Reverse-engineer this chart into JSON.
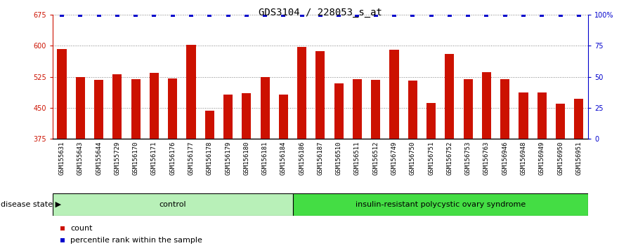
{
  "title": "GDS3104 / 228053_s_at",
  "samples": [
    "GSM155631",
    "GSM155643",
    "GSM155644",
    "GSM155729",
    "GSM156170",
    "GSM156171",
    "GSM156176",
    "GSM156177",
    "GSM156178",
    "GSM156179",
    "GSM156180",
    "GSM156181",
    "GSM156184",
    "GSM156186",
    "GSM156187",
    "GSM156510",
    "GSM156511",
    "GSM156512",
    "GSM156749",
    "GSM156750",
    "GSM156751",
    "GSM156752",
    "GSM156753",
    "GSM156763",
    "GSM156946",
    "GSM156948",
    "GSM156949",
    "GSM156950",
    "GSM156951"
  ],
  "bar_values": [
    593,
    524,
    518,
    532,
    519,
    535,
    522,
    602,
    444,
    482,
    486,
    524,
    483,
    598,
    588,
    510,
    519,
    517,
    590,
    516,
    462,
    580,
    519,
    536,
    519,
    488,
    488,
    460,
    472
  ],
  "percentile_values": [
    100,
    100,
    100,
    100,
    100,
    100,
    100,
    100,
    100,
    100,
    100,
    100,
    100,
    100,
    100,
    100,
    100,
    100,
    100,
    100,
    100,
    100,
    100,
    100,
    100,
    100,
    100,
    100,
    100
  ],
  "n_control": 13,
  "control_label": "control",
  "control_color": "#b8f0b8",
  "disease_label": "insulin-resistant polycystic ovary syndrome",
  "disease_color": "#44dd44",
  "bar_color": "#cc1100",
  "percentile_color": "#0000cc",
  "ylim_left": [
    375,
    675
  ],
  "ylim_right": [
    0,
    100
  ],
  "yticks_left": [
    375,
    450,
    525,
    600,
    675
  ],
  "yticks_right": [
    0,
    25,
    50,
    75,
    100
  ],
  "grid_lines": [
    450,
    525,
    600
  ],
  "xtick_bg": "#cccccc",
  "bar_width": 0.5,
  "tick_fontsize": 6.5,
  "label_fontsize": 8
}
